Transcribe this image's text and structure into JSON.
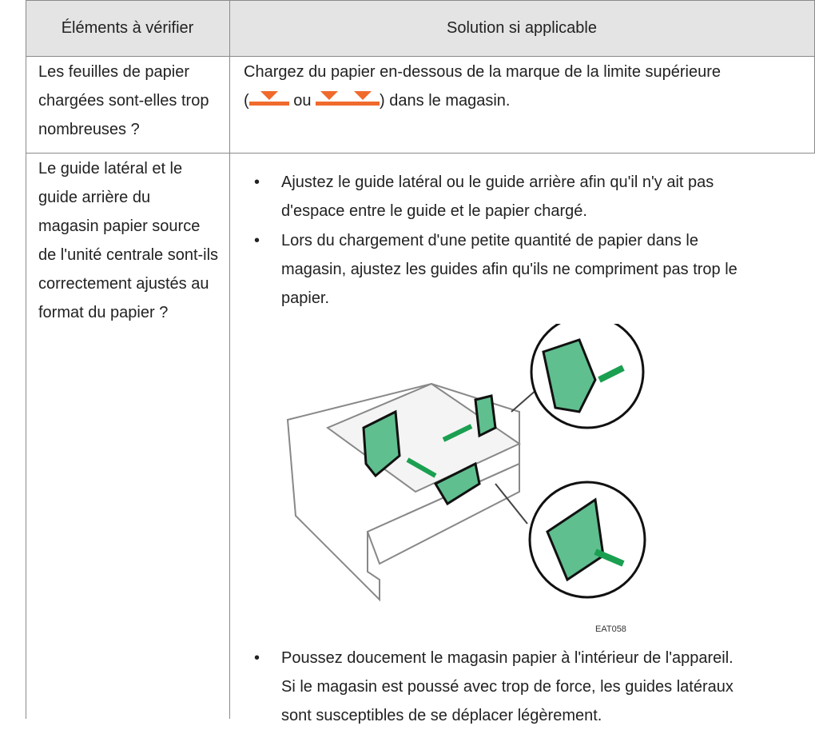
{
  "table": {
    "header": [
      "Éléments à vérifier",
      "Solution si applicable"
    ],
    "rows": [
      {
        "check": [
          "Les feuilles de papier",
          "chargées sont-elles trop",
          "nombreuses ?"
        ],
        "solution": {
          "before": "Chargez du papier en-dessous de la marque de la limite supérieure",
          "open": "(",
          "or": "ou",
          "after": ") dans le magasin."
        }
      },
      {
        "check": [
          "Le guide latéral et le",
          "guide arrière du",
          "magasin papier source",
          "de l'unité centrale sont-ils",
          "correctement ajustés au",
          "format du papier ?"
        ],
        "bullets": [
          [
            "Ajustez le guide latéral ou le guide arrière afin qu'il n'y ait pas",
            "d'espace entre le guide et le papier chargé."
          ],
          [
            "Lors du chargement d'une petite quantité de papier dans le",
            "magasin, ajustez les guides afin qu'ils ne compriment pas trop le",
            "papier."
          ],
          [
            "Poussez doucement le magasin papier à l'intérieur de l'appareil.",
            "Si le magasin est poussé avec trop de force, les guides latéraux",
            "sont susceptibles de se déplacer légèrement."
          ]
        ],
        "figure_code": "EAT058"
      }
    ]
  }
}
